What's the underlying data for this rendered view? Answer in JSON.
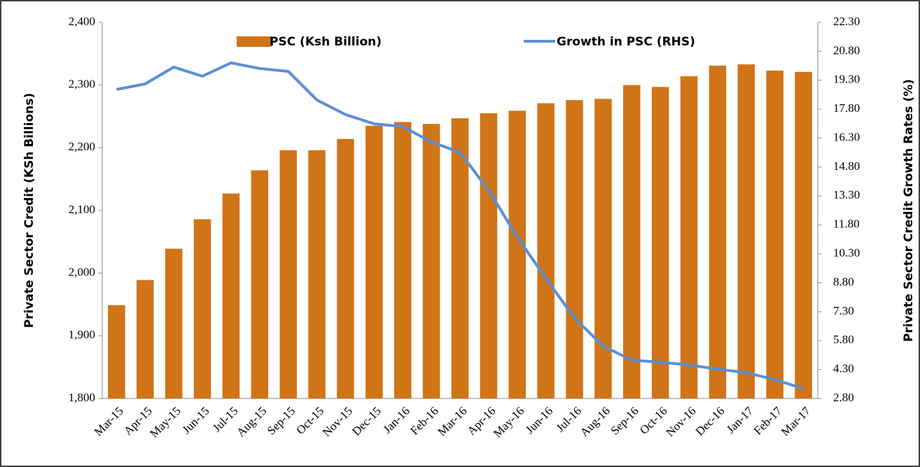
{
  "chart_data": {
    "type": "combo",
    "categories": [
      "Mar-15",
      "Apr-15",
      "May-15",
      "Jun-15",
      "Jul-15",
      "Aug-15",
      "Sep-15",
      "Oct-15",
      "Nov-15",
      "Dec-15",
      "Jan-16",
      "Feb-16",
      "Mar-16",
      "Apr-16",
      "May-16",
      "Jun-16",
      "Jul-16",
      "Aug-16",
      "Sep-16",
      "Oct-16",
      "Nov-16",
      "Dec-16",
      "Jan-17",
      "Feb-17",
      "Mar-17"
    ],
    "series": [
      {
        "name": "PSC (Ksh Billion)",
        "type": "bar",
        "color": "#d07418",
        "values": [
          1949,
          1989,
          2039,
          2086,
          2127,
          2164,
          2196,
          2196,
          2214,
          2235,
          2241,
          2238,
          2247,
          2255,
          2259,
          2271,
          2276,
          2278,
          2300,
          2297,
          2314,
          2331,
          2333,
          2323,
          2321
        ]
      },
      {
        "name": "Growth in PSC (RHS)",
        "type": "line",
        "axis": "y2",
        "color": "#5b8ed6",
        "values": [
          18.82,
          19.11,
          19.98,
          19.51,
          20.2,
          19.91,
          19.76,
          18.28,
          17.52,
          17.04,
          16.9,
          16.1,
          15.56,
          13.6,
          11.17,
          9.03,
          6.97,
          5.52,
          4.79,
          4.68,
          4.54,
          4.32,
          4.14,
          3.78,
          3.31
        ]
      }
    ],
    "y_label": "Private Sector Credit (KSh Billions)",
    "y2_label": "Private Sector Credit Growth Rates (%)",
    "ylim": [
      1800,
      2400
    ],
    "yticks": [
      {
        "value": 1800,
        "label": "1,800"
      },
      {
        "value": 1900,
        "label": "1,900"
      },
      {
        "value": 2000,
        "label": "2,000"
      },
      {
        "value": 2100,
        "label": "2,100"
      },
      {
        "value": 2200,
        "label": "2,200"
      },
      {
        "value": 2300,
        "label": "2,300"
      },
      {
        "value": 2400,
        "label": "2,400"
      }
    ],
    "y2lim": [
      2.8,
      22.3
    ],
    "y2ticks": [
      {
        "value": 2.8,
        "label": "2.80"
      },
      {
        "value": 4.3,
        "label": "4.30"
      },
      {
        "value": 5.8,
        "label": "5.80"
      },
      {
        "value": 7.3,
        "label": "7.30"
      },
      {
        "value": 8.8,
        "label": "8.80"
      },
      {
        "value": 10.3,
        "label": "10.30"
      },
      {
        "value": 11.8,
        "label": "11.80"
      },
      {
        "value": 13.3,
        "label": "13.30"
      },
      {
        "value": 14.8,
        "label": "14.80"
      },
      {
        "value": 16.3,
        "label": "16.30"
      },
      {
        "value": 17.8,
        "label": "17.80"
      },
      {
        "value": 19.3,
        "label": "19.30"
      },
      {
        "value": 20.8,
        "label": "20.80"
      },
      {
        "value": 22.3,
        "label": "22.30"
      }
    ],
    "grid": false,
    "legend": "top"
  }
}
